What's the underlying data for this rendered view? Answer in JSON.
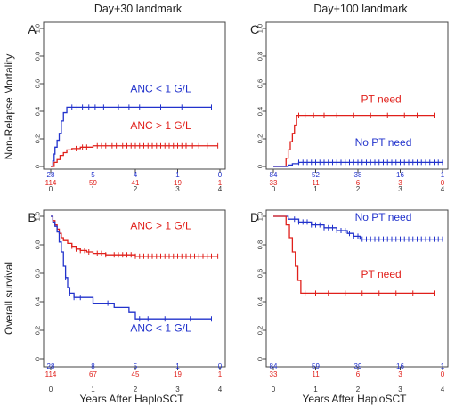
{
  "column_titles": [
    "Day+30 landmark",
    "Day+100 landmark"
  ],
  "row_labels": [
    "Non-Relapse Mortality",
    "Overall survival"
  ],
  "xlabel": "Years After HaploSCT",
  "colors": {
    "blue": "#2233cc",
    "red": "#e0201b",
    "axis": "#444444"
  },
  "chart_data": [
    {
      "panel": "A",
      "type": "line",
      "step": true,
      "title": "",
      "xlabel": "",
      "ylabel": "Non-Relapse Mortality",
      "xlim": [
        0,
        4
      ],
      "ylim": [
        0,
        1
      ],
      "x_ticks": [
        "0",
        "1",
        "2",
        "3",
        "4"
      ],
      "y_ticks": [
        "0",
        "0.2",
        "0.4",
        "0.6",
        "0.8",
        "1.0"
      ],
      "series": [
        {
          "name": "ANC < 1 G/L",
          "color": "#2233cc",
          "x": [
            0,
            0.05,
            0.08,
            0.1,
            0.15,
            0.2,
            0.25,
            0.3,
            0.38,
            3.8
          ],
          "y": [
            0,
            0.04,
            0.09,
            0.14,
            0.19,
            0.24,
            0.33,
            0.39,
            0.43,
            0.43
          ],
          "censor_x": [
            0.5,
            0.62,
            0.75,
            0.9,
            1.05,
            1.25,
            1.4,
            1.6,
            1.85,
            2.1,
            2.6,
            3.1,
            3.8
          ]
        },
        {
          "name": "ANC > 1 G/L",
          "color": "#e0201b",
          "x": [
            0,
            0.08,
            0.15,
            0.22,
            0.3,
            0.38,
            0.5,
            0.7,
            1.0,
            3.95
          ],
          "y": [
            0,
            0.03,
            0.05,
            0.08,
            0.1,
            0.12,
            0.13,
            0.14,
            0.15,
            0.15
          ],
          "censor_x": [
            0.6,
            0.75,
            0.85,
            1.1,
            1.2,
            1.3,
            1.45,
            1.55,
            1.7,
            1.8,
            1.9,
            2.0,
            2.1,
            2.2,
            2.3,
            2.4,
            2.5,
            2.6,
            2.7,
            2.8,
            2.9,
            3.0,
            3.1,
            3.2,
            3.35,
            3.5,
            3.7,
            3.95
          ]
        }
      ],
      "legend_labels": [
        {
          "text": "ANC < 1 G/L",
          "color": "#2233cc",
          "x": 2.6,
          "y": 0.54
        },
        {
          "text": "ANC > 1 G/L",
          "color": "#e0201b",
          "x": 2.6,
          "y": 0.27
        }
      ],
      "risk_table": {
        "times": [
          0,
          1,
          2,
          3,
          4
        ],
        "rows": [
          {
            "color": "#2233cc",
            "values": [
              "28",
              "5",
              "4",
              "1",
              "0"
            ]
          },
          {
            "color": "#e0201b",
            "values": [
              "114",
              "59",
              "41",
              "19",
              "1"
            ]
          }
        ]
      }
    },
    {
      "panel": "C",
      "type": "line",
      "step": true,
      "title": "",
      "xlabel": "",
      "ylabel": "",
      "xlim": [
        0,
        4
      ],
      "ylim": [
        0,
        1
      ],
      "x_ticks": [
        "0",
        "1",
        "2",
        "3",
        "4"
      ],
      "y_ticks": [
        "0",
        "0.2",
        "0.4",
        "0.6",
        "0.8",
        "1.0"
      ],
      "series": [
        {
          "name": "PT need",
          "color": "#e0201b",
          "x": [
            0,
            0.3,
            0.35,
            0.4,
            0.45,
            0.5,
            0.55,
            3.8
          ],
          "y": [
            0,
            0.06,
            0.12,
            0.18,
            0.24,
            0.3,
            0.37,
            0.37
          ],
          "censor_x": [
            0.6,
            0.75,
            0.95,
            1.2,
            1.5,
            1.9,
            2.3,
            2.7,
            3.1,
            3.4,
            3.8
          ]
        },
        {
          "name": "No PT need",
          "color": "#2233cc",
          "x": [
            0,
            0.35,
            0.45,
            0.6,
            4.0
          ],
          "y": [
            0,
            0.01,
            0.02,
            0.03,
            0.03
          ],
          "censor_x": [
            0.6,
            0.7,
            0.8,
            0.9,
            1.0,
            1.1,
            1.2,
            1.3,
            1.4,
            1.5,
            1.6,
            1.7,
            1.8,
            1.9,
            2.0,
            2.1,
            2.2,
            2.3,
            2.4,
            2.5,
            2.6,
            2.7,
            2.8,
            2.9,
            3.0,
            3.1,
            3.2,
            3.3,
            3.4,
            3.5,
            3.6,
            3.7,
            3.8,
            3.9,
            4.0
          ]
        }
      ],
      "legend_labels": [
        {
          "text": "PT need",
          "color": "#e0201b",
          "x": 2.55,
          "y": 0.46
        },
        {
          "text": "No PT need",
          "color": "#2233cc",
          "x": 2.6,
          "y": 0.15
        }
      ],
      "risk_table": {
        "times": [
          0,
          1,
          2,
          3,
          4
        ],
        "rows": [
          {
            "color": "#2233cc",
            "values": [
              "84",
              "52",
              "38",
              "16",
              "1"
            ]
          },
          {
            "color": "#e0201b",
            "values": [
              "33",
              "11",
              "6",
              "3",
              "0"
            ]
          }
        ]
      }
    },
    {
      "panel": "B",
      "type": "line",
      "step": true,
      "title": "",
      "xlabel": "Years After HaploSCT",
      "ylabel": "Overall survival",
      "xlim": [
        0,
        4
      ],
      "ylim": [
        0,
        1
      ],
      "x_ticks": [
        "0",
        "1",
        "2",
        "3",
        "4"
      ],
      "y_ticks": [
        "0",
        "0.2",
        "0.4",
        "0.6",
        "0.8",
        "1.0"
      ],
      "series": [
        {
          "name": "ANC > 1 G/L",
          "color": "#e0201b",
          "x": [
            0,
            0.05,
            0.1,
            0.15,
            0.2,
            0.25,
            0.3,
            0.4,
            0.5,
            0.6,
            0.7,
            0.85,
            1.0,
            1.3,
            1.6,
            2.0,
            3.95
          ],
          "y": [
            1,
            0.97,
            0.94,
            0.91,
            0.88,
            0.85,
            0.83,
            0.81,
            0.79,
            0.77,
            0.76,
            0.75,
            0.74,
            0.73,
            0.73,
            0.72,
            0.72
          ],
          "censor_x": [
            0.5,
            0.6,
            0.7,
            0.8,
            0.9,
            1.0,
            1.1,
            1.2,
            1.3,
            1.4,
            1.5,
            1.6,
            1.7,
            1.8,
            1.9,
            2.0,
            2.1,
            2.2,
            2.3,
            2.4,
            2.5,
            2.6,
            2.7,
            2.8,
            2.9,
            3.0,
            3.1,
            3.2,
            3.3,
            3.4,
            3.5,
            3.6,
            3.7,
            3.8,
            3.95
          ]
        },
        {
          "name": "ANC < 1 G/L",
          "color": "#2233cc",
          "x": [
            0,
            0.05,
            0.1,
            0.15,
            0.2,
            0.25,
            0.3,
            0.35,
            0.4,
            0.45,
            0.55,
            0.7,
            1.0,
            1.5,
            1.85,
            2.0,
            3.8
          ],
          "y": [
            1,
            0.96,
            0.93,
            0.89,
            0.82,
            0.75,
            0.65,
            0.57,
            0.5,
            0.46,
            0.43,
            0.43,
            0.39,
            0.36,
            0.33,
            0.28,
            0.28
          ],
          "censor_x": [
            0.35,
            0.45,
            0.55,
            0.62,
            0.7,
            1.35,
            2.1,
            2.3,
            2.7,
            3.3,
            3.8
          ]
        }
      ],
      "legend_labels": [
        {
          "text": "ANC > 1 G/L",
          "color": "#e0201b",
          "x": 2.6,
          "y": 0.91
        },
        {
          "text": "ANC < 1 G/L",
          "color": "#2233cc",
          "x": 2.6,
          "y": 0.19
        }
      ],
      "risk_table": {
        "times": [
          0,
          1,
          2,
          3,
          4
        ],
        "rows": [
          {
            "color": "#2233cc",
            "values": [
              "28",
              "8",
              "5",
              "1",
              "0"
            ]
          },
          {
            "color": "#e0201b",
            "values": [
              "114",
              "67",
              "45",
              "19",
              "1"
            ]
          }
        ]
      }
    },
    {
      "panel": "D",
      "type": "line",
      "step": true,
      "title": "",
      "xlabel": "Years After HaploSCT",
      "ylabel": "",
      "xlim": [
        0,
        4
      ],
      "ylim": [
        0,
        1
      ],
      "x_ticks": [
        "0",
        "1",
        "2",
        "3",
        "4"
      ],
      "y_ticks": [
        "0",
        "0.2",
        "0.4",
        "0.6",
        "0.8",
        "1.0"
      ],
      "series": [
        {
          "name": "No PT need",
          "color": "#2233cc",
          "x": [
            0,
            0.35,
            0.6,
            0.9,
            1.2,
            1.5,
            1.75,
            1.9,
            2.05,
            4.0
          ],
          "y": [
            1,
            0.98,
            0.96,
            0.94,
            0.92,
            0.9,
            0.88,
            0.86,
            0.84,
            0.84
          ],
          "censor_x": [
            0.5,
            0.6,
            0.7,
            0.8,
            0.9,
            1.0,
            1.1,
            1.2,
            1.3,
            1.4,
            1.5,
            1.6,
            1.7,
            1.8,
            1.9,
            2.0,
            2.1,
            2.2,
            2.3,
            2.4,
            2.5,
            2.6,
            2.7,
            2.8,
            2.9,
            3.0,
            3.1,
            3.2,
            3.3,
            3.4,
            3.5,
            3.6,
            3.7,
            3.8,
            3.9,
            4.0
          ]
        },
        {
          "name": "PT need",
          "color": "#e0201b",
          "x": [
            0,
            0.3,
            0.38,
            0.45,
            0.52,
            0.58,
            0.65,
            3.8
          ],
          "y": [
            1,
            0.94,
            0.85,
            0.75,
            0.65,
            0.55,
            0.46,
            0.46
          ],
          "censor_x": [
            0.75,
            1.0,
            1.3,
            1.7,
            2.1,
            2.5,
            2.9,
            3.3,
            3.8
          ]
        }
      ],
      "legend_labels": [
        {
          "text": "No PT need",
          "color": "#2233cc",
          "x": 2.6,
          "y": 0.97
        },
        {
          "text": "PT need",
          "color": "#e0201b",
          "x": 2.55,
          "y": 0.57
        }
      ],
      "risk_table": {
        "times": [
          0,
          1,
          2,
          3,
          4
        ],
        "rows": [
          {
            "color": "#2233cc",
            "values": [
              "84",
              "59",
              "39",
              "16",
              "1"
            ]
          },
          {
            "color": "#e0201b",
            "values": [
              "33",
              "11",
              "6",
              "3",
              "0"
            ]
          }
        ]
      }
    }
  ]
}
